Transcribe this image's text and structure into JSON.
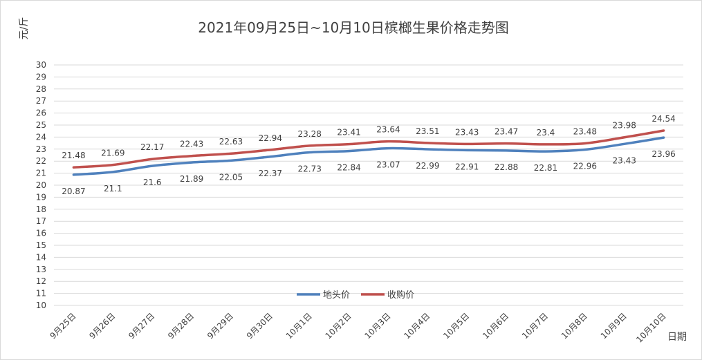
{
  "chart_data": {
    "type": "line",
    "title": "2021年09月25日~10月10日槟榔生果价格走势图",
    "xlabel": "日期",
    "ylabel": "元/斤",
    "ylim": [
      10,
      30
    ],
    "y_ticks": [
      "10",
      "11",
      "12",
      "13",
      "14",
      "15",
      "16",
      "17",
      "18",
      "19",
      "20",
      "21",
      "22",
      "23",
      "24",
      "25",
      "26",
      "27",
      "28",
      "29",
      "30"
    ],
    "grid": true,
    "legend_position": "bottom-center",
    "categories": [
      "9月25日",
      "9月26日",
      "9月27日",
      "9月28日",
      "9月29日",
      "9月30日",
      "10月1日",
      "10月2日",
      "10月3日",
      "10月4日",
      "10月5日",
      "10月6日",
      "10月7日",
      "10月8日",
      "10月9日",
      "10月10日"
    ],
    "series": [
      {
        "name": "地头价",
        "color": "#4f81bd",
        "values": [
          20.87,
          21.1,
          21.6,
          21.89,
          22.05,
          22.37,
          22.73,
          22.84,
          23.07,
          22.99,
          22.91,
          22.88,
          22.81,
          22.96,
          23.43,
          23.96
        ],
        "labels": [
          "20.87",
          "21.1",
          "21.6",
          "21.89",
          "22.05",
          "22.37",
          "22.73",
          "22.84",
          "23.07",
          "22.99",
          "22.91",
          "22.88",
          "22.81",
          "22.96",
          "23.43",
          "23.96"
        ]
      },
      {
        "name": "收购价",
        "color": "#c0504d",
        "values": [
          21.48,
          21.69,
          22.17,
          22.43,
          22.63,
          22.94,
          23.28,
          23.41,
          23.64,
          23.51,
          23.43,
          23.47,
          23.4,
          23.48,
          23.98,
          24.54
        ],
        "labels": [
          "21.48",
          "21.69",
          "22.17",
          "22.43",
          "22.63",
          "22.94",
          "23.28",
          "23.41",
          "23.64",
          "23.51",
          "23.43",
          "23.47",
          "23.4",
          "23.48",
          "23.98",
          "24.54"
        ]
      }
    ]
  }
}
